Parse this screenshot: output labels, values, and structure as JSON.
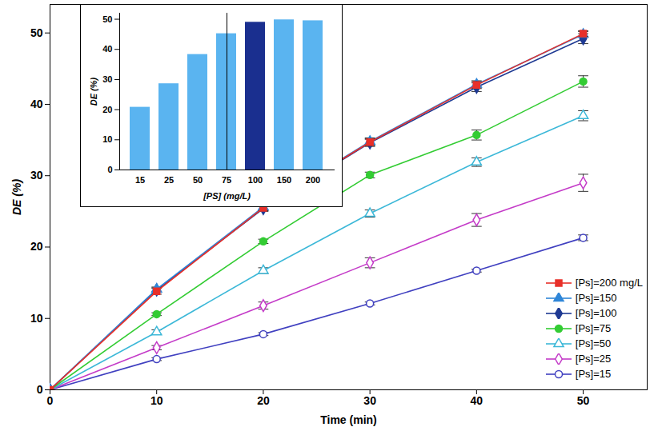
{
  "chart_data": [
    {
      "type": "line",
      "x_label": "Time (min)",
      "y_label": "DE (%)",
      "x": [
        0,
        10,
        20,
        30,
        40,
        50
      ],
      "xlim": [
        0,
        56
      ],
      "xticks": [
        0,
        10,
        20,
        30,
        40,
        50
      ],
      "ylim": [
        0,
        54
      ],
      "yticks": [
        0,
        10,
        20,
        30,
        40,
        50
      ],
      "grid": false,
      "legend": "lower right",
      "series": [
        {
          "name": "[Ps]=200 mg/L",
          "color": "#e8302a",
          "marker": "square",
          "values": [
            0,
            13.8,
            25.5,
            34.7,
            42.7,
            49.9
          ],
          "errors": [
            0,
            0.4,
            0.4,
            0.5,
            0.5,
            0.4
          ]
        },
        {
          "name": "[Ps]=150",
          "color": "#2f86d8",
          "marker": "triangle",
          "values": [
            0,
            14.1,
            25.6,
            34.8,
            42.8,
            49.8
          ],
          "errors": [
            0,
            0.3,
            0.4,
            0.5,
            0.5,
            0.4
          ]
        },
        {
          "name": "[Ps]=100",
          "color": "#1f3a93",
          "marker": "diamond",
          "values": [
            0,
            14.0,
            25.4,
            34.6,
            42.4,
            49.2
          ],
          "errors": [
            0,
            0.3,
            0.4,
            0.5,
            0.6,
            0.7
          ]
        },
        {
          "name": "[Ps]=75",
          "color": "#33cc33",
          "marker": "circle",
          "values": [
            0,
            10.6,
            20.8,
            30.1,
            35.7,
            43.2
          ],
          "errors": [
            0,
            0.2,
            0.3,
            0.4,
            0.7,
            0.8
          ]
        },
        {
          "name": "[Ps]=50",
          "color": "#3cb8d8",
          "marker": "triangle-open",
          "values": [
            0,
            8.1,
            16.7,
            24.7,
            31.9,
            38.4
          ],
          "errors": [
            0,
            0.3,
            0.4,
            0.5,
            0.6,
            0.7
          ]
        },
        {
          "name": "[Ps]=25",
          "color": "#c43bc8",
          "marker": "diamond-open",
          "values": [
            0,
            5.9,
            11.8,
            17.8,
            23.8,
            29.0
          ],
          "errors": [
            0,
            0.3,
            0.5,
            0.7,
            0.9,
            1.2
          ]
        },
        {
          "name": "[Ps]=15",
          "color": "#4040c0",
          "marker": "circle-open",
          "values": [
            0,
            4.3,
            7.8,
            12.1,
            16.7,
            21.3
          ],
          "errors": [
            0,
            0.2,
            0.2,
            0.2,
            0.2,
            0.4
          ]
        }
      ]
    },
    {
      "type": "bar",
      "x_label": "[PS] (mg/L)",
      "y_label": "DE (%)",
      "categories": [
        "15",
        "25",
        "50",
        "75",
        "100",
        "150",
        "200"
      ],
      "values": [
        20.8,
        28.6,
        38.3,
        45.2,
        49.0,
        49.8,
        49.5
      ],
      "colors": [
        "#5ab4f0",
        "#5ab4f0",
        "#5ab4f0",
        "#5ab4f0",
        "#1a2f8f",
        "#5ab4f0",
        "#5ab4f0"
      ],
      "ylim": [
        0,
        52
      ],
      "yticks": [
        0,
        10,
        20,
        30,
        40,
        50
      ],
      "grid": false
    }
  ]
}
